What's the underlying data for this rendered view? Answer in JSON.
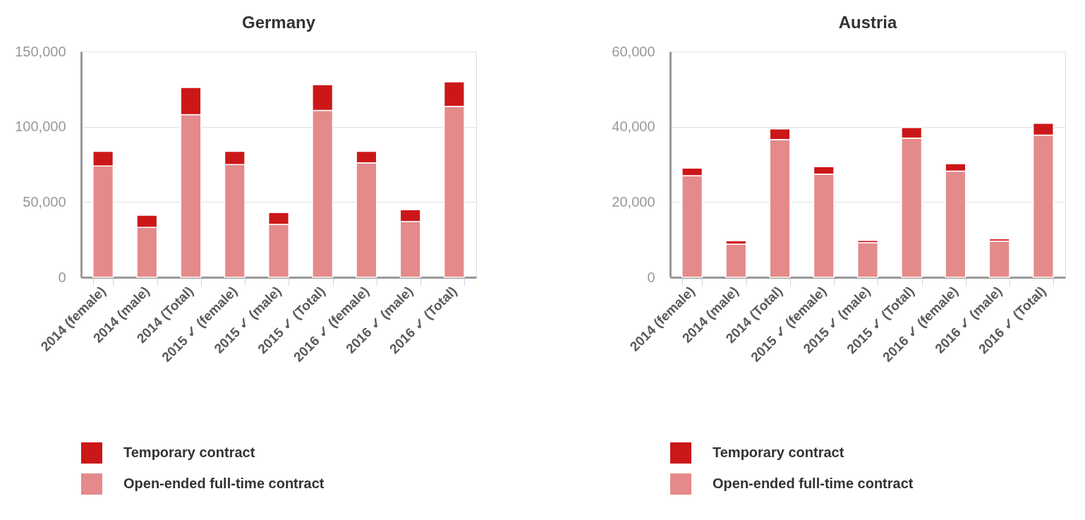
{
  "chart_data": [
    {
      "type": "bar",
      "title": "Germany",
      "stacked": true,
      "categories": [
        "2014 (female)",
        "2014 (male)",
        "2014 (Total)",
        "2015 ✓ (female)",
        "2015 ✓ (male)",
        "2015 ✓ (Total)",
        "2016 ✓ (female)",
        "2016 ✓ (male)",
        "2016 ✓ (Total)"
      ],
      "series": [
        {
          "name": "Open-ended full-time contract",
          "color": "#e48a8a",
          "values": [
            74000,
            33200,
            108100,
            74900,
            35200,
            110900,
            76100,
            37000,
            113600
          ]
        },
        {
          "name": "Temporary contract",
          "color": "#cc1719",
          "values": [
            9700,
            8000,
            18000,
            8800,
            7800,
            17100,
            7600,
            7900,
            16300
          ]
        }
      ],
      "ylim": [
        0,
        150000
      ],
      "yticks": [
        {
          "value": 0,
          "label": "0"
        },
        {
          "value": 50000,
          "label": "50,000"
        },
        {
          "value": 100000,
          "label": "100,000"
        },
        {
          "value": 150000,
          "label": "150,000"
        }
      ],
      "grid": "y",
      "legend": "bottom"
    },
    {
      "type": "bar",
      "title": "Austria",
      "stacked": true,
      "categories": [
        "2014 (female)",
        "2014 (male)",
        "2014 (Total)",
        "2015 ✓ (female)",
        "2015 ✓ (male)",
        "2015 ✓ (Total)",
        "2016 ✓ (female)",
        "2016 ✓ (male)",
        "2016 ✓ (Total)"
      ],
      "series": [
        {
          "name": "Open-ended full-time contract",
          "color": "#e48a8a",
          "values": [
            27000,
            8800,
            36600,
            27400,
            9200,
            37000,
            28200,
            9600,
            37800
          ]
        },
        {
          "name": "Temporary contract",
          "color": "#cc1719",
          "values": [
            2000,
            900,
            2800,
            2000,
            600,
            2800,
            2000,
            600,
            3100
          ]
        }
      ],
      "ylim": [
        0,
        60000
      ],
      "yticks": [
        {
          "value": 0,
          "label": "0"
        },
        {
          "value": 20000,
          "label": "20,000"
        },
        {
          "value": 40000,
          "label": "40,000"
        },
        {
          "value": 60000,
          "label": "60,000"
        }
      ],
      "grid": "y",
      "legend": "bottom"
    }
  ]
}
